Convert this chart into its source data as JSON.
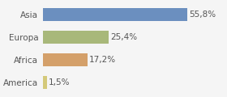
{
  "categories": [
    "Asia",
    "Europa",
    "Africa",
    "America"
  ],
  "values": [
    55.8,
    25.4,
    17.2,
    1.5
  ],
  "labels": [
    "55,8%",
    "25,4%",
    "17,2%",
    "1,5%"
  ],
  "bar_colors": [
    "#6b8fbf",
    "#a8b87a",
    "#d4a06a",
    "#d4c97a"
  ],
  "background_color": "#f5f5f5",
  "xlim": [
    0,
    70
  ],
  "label_fontsize": 7.5,
  "category_fontsize": 7.5
}
